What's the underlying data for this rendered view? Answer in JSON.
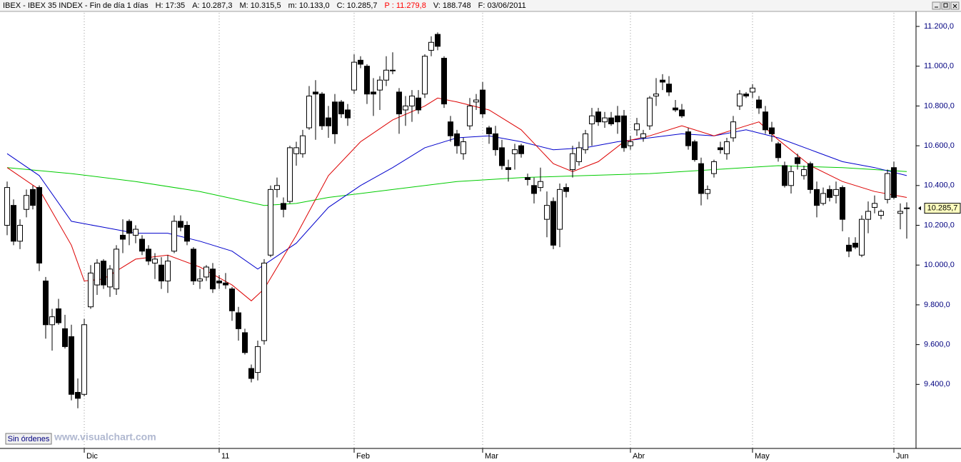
{
  "header": {
    "items": [
      {
        "text": "IBEX - IBEX 35 INDEX - Fin de día 1 días",
        "color": "#000000"
      },
      {
        "text": "H: 17:35",
        "color": "#000000"
      },
      {
        "text": "A: 10.287,3",
        "color": "#000000"
      },
      {
        "text": "M: 10.315,5",
        "color": "#000000"
      },
      {
        "text": "m: 10.133,0",
        "color": "#000000"
      },
      {
        "text": "C: 10.285,7",
        "color": "#000000"
      },
      {
        "text": "P : 11.279,8",
        "color": "#ff0000"
      },
      {
        "text": "V: 188.748",
        "color": "#000000"
      },
      {
        "text": "F: 03/06/2011",
        "color": "#000000"
      }
    ]
  },
  "footer": {
    "status": "Sin órdenes",
    "watermark": "www.visualchart.com"
  },
  "chart_data": {
    "type": "candlestick",
    "categories": [
      null,
      null,
      null,
      null,
      null,
      null,
      null,
      null,
      null,
      null,
      null,
      null,
      "Dic",
      null,
      null,
      null,
      null,
      null,
      null,
      null,
      null,
      null,
      null,
      null,
      null,
      null,
      null,
      null,
      null,
      null,
      null,
      null,
      null,
      "11",
      null,
      null,
      null,
      null,
      null,
      null,
      null,
      null,
      null,
      null,
      null,
      null,
      null,
      null,
      null,
      null,
      null,
      null,
      null,
      null,
      "Feb",
      null,
      null,
      null,
      null,
      null,
      null,
      null,
      null,
      null,
      null,
      null,
      null,
      null,
      null,
      null,
      null,
      null,
      null,
      null,
      "Mar",
      null,
      null,
      null,
      null,
      null,
      null,
      null,
      null,
      null,
      null,
      null,
      null,
      null,
      null,
      null,
      null,
      null,
      null,
      null,
      null,
      null,
      null,
      "Abr",
      null,
      null,
      null,
      null,
      null,
      null,
      null,
      null,
      null,
      null,
      null,
      null,
      null,
      null,
      null,
      null,
      null,
      null,
      "May",
      null,
      null,
      null,
      null,
      null,
      null,
      null,
      null,
      null,
      null,
      null,
      null,
      null,
      null,
      null,
      null,
      null,
      null,
      null,
      null,
      null,
      "Jun",
      null,
      null
    ],
    "open": [
      10200,
      10300,
      10120,
      10280,
      10380,
      10390,
      9920,
      9700,
      9780,
      9680,
      9640,
      9360,
      9350,
      9790,
      9900,
      10020,
      9890,
      9880,
      10150,
      10220,
      10150,
      10130,
      10080,
      10010,
      10000,
      9920,
      10070,
      10220,
      10200,
      10080,
      9920,
      9940,
      9980,
      9920,
      9910,
      9880,
      9760,
      9660,
      9480,
      9460,
      9620,
      10050,
      10380,
      10310,
      10320,
      10560,
      10560,
      10690,
      10870,
      10860,
      10740,
      10820,
      10820,
      10780,
      10880,
      11030,
      11000,
      10870,
      10880,
      10930,
      10980,
      10870,
      10780,
      10800,
      10840,
      10860,
      11080,
      11160,
      11040,
      10720,
      10660,
      10560,
      10700,
      10820,
      10880,
      10690,
      10660,
      10590,
      10490,
      10560,
      10600,
      10440,
      10400,
      10390,
      10230,
      10320,
      10180,
      10390,
      10480,
      10520,
      10580,
      10710,
      10770,
      10720,
      10740,
      10750,
      10750,
      10600,
      10680,
      10640,
      10700,
      10850,
      10930,
      10910,
      10790,
      10780,
      10670,
      10620,
      10510,
      10360,
      10460,
      10590,
      10560,
      10640,
      10800,
      10860,
      10870,
      10830,
      10770,
      10690,
      10610,
      10500,
      10400,
      10540,
      10450,
      10510,
      10380,
      10310,
      10380,
      10350,
      10390,
      10100,
      10110,
      10050,
      10230,
      10290,
      10250,
      10330,
      10490,
      10260,
      10287.3
    ],
    "high": [
      10420,
      10330,
      10230,
      10380,
      10400,
      10400,
      9940,
      9780,
      9830,
      9750,
      9700,
      9430,
      9730,
      10000,
      10030,
      10030,
      10000,
      10100,
      10230,
      10230,
      10200,
      10150,
      10100,
      10060,
      10040,
      10050,
      10250,
      10250,
      10220,
      10090,
      9980,
      10000,
      10010,
      9950,
      9960,
      9890,
      9790,
      9680,
      9500,
      9620,
      10030,
      10400,
      10440,
      10340,
      10600,
      10620,
      10680,
      10900,
      10930,
      10870,
      10800,
      10860,
      10830,
      10810,
      11060,
      11050,
      11010,
      10940,
      10950,
      11050,
      11070,
      10890,
      10850,
      10880,
      10880,
      11060,
      11150,
      11170,
      11050,
      10750,
      10680,
      10640,
      10840,
      10860,
      10920,
      10700,
      10700,
      10630,
      10530,
      10610,
      10610,
      10460,
      10440,
      10490,
      10370,
      10340,
      10410,
      10410,
      10600,
      10620,
      10680,
      10790,
      10790,
      10770,
      10770,
      10800,
      10780,
      10650,
      10740,
      10680,
      10850,
      10940,
      10960,
      10950,
      10830,
      10810,
      10690,
      10630,
      10540,
      10400,
      10530,
      10620,
      10640,
      10750,
      10880,
      10870,
      10910,
      10850,
      10800,
      10720,
      10620,
      10520,
      10500,
      10560,
      10500,
      10520,
      10420,
      10390,
      10400,
      10420,
      10400,
      10140,
      10140,
      10250,
      10320,
      10350,
      10280,
      10480,
      10520,
      10310,
      10315.5
    ],
    "low": [
      10150,
      10100,
      10080,
      10240,
      10280,
      9970,
      9630,
      9570,
      9700,
      9580,
      9320,
      9280,
      9340,
      9780,
      9850,
      9880,
      9840,
      9850,
      10060,
      10100,
      10110,
      10050,
      10000,
      9930,
      9880,
      9860,
      10060,
      10170,
      10100,
      9900,
      9880,
      9920,
      9860,
      9880,
      9880,
      9720,
      9620,
      9550,
      9410,
      9420,
      9600,
      10040,
      10340,
      10240,
      10310,
      10500,
      10540,
      10680,
      10630,
      10680,
      10640,
      10610,
      10740,
      10700,
      10860,
      10990,
      10810,
      10750,
      10780,
      10900,
      10960,
      10660,
      10700,
      10720,
      10760,
      10840,
      11050,
      11080,
      10790,
      10620,
      10560,
      10530,
      10680,
      10780,
      10740,
      10610,
      10550,
      10480,
      10420,
      10480,
      10540,
      10400,
      10310,
      10370,
      10140,
      10080,
      10090,
      10340,
      10440,
      10500,
      10560,
      10600,
      10700,
      10690,
      10700,
      10660,
      10570,
      10580,
      10650,
      10620,
      10680,
      10800,
      10880,
      10850,
      10770,
      10740,
      10580,
      10520,
      10300,
      10330,
      10440,
      10560,
      10530,
      10620,
      10780,
      10840,
      10840,
      10760,
      10660,
      10620,
      10520,
      10390,
      10360,
      10480,
      10430,
      10360,
      10240,
      10300,
      10320,
      10310,
      10170,
      10040,
      10080,
      10040,
      10160,
      10260,
      10230,
      10310,
      10330,
      10180,
      10133
    ],
    "close": [
      10390,
      10120,
      10200,
      10350,
      10300,
      10010,
      9700,
      9740,
      9710,
      9590,
      9350,
      9330,
      9700,
      9960,
      10010,
      9900,
      9980,
      10080,
      10130,
      10160,
      10180,
      10070,
      10020,
      10030,
      9920,
      10020,
      10220,
      10190,
      10120,
      9920,
      9930,
      9990,
      9880,
      9910,
      9900,
      9770,
      9680,
      9560,
      9430,
      9590,
      10010,
      10380,
      10400,
      10280,
      10590,
      10590,
      10650,
      10850,
      10860,
      10700,
      10700,
      10660,
      10760,
      10740,
      11020,
      11010,
      10860,
      10860,
      10930,
      10980,
      10980,
      10760,
      10800,
      10850,
      10780,
      11050,
      11120,
      11100,
      10810,
      10650,
      10600,
      10620,
      10800,
      10830,
      10760,
      10660,
      10580,
      10500,
      10480,
      10580,
      10560,
      10430,
      10360,
      10420,
      10300,
      10100,
      10380,
      10370,
      10560,
      10590,
      10660,
      10750,
      10720,
      10740,
      10710,
      10720,
      10590,
      10620,
      10710,
      10660,
      10840,
      10860,
      10920,
      10870,
      10780,
      10750,
      10600,
      10530,
      10360,
      10380,
      10520,
      10580,
      10620,
      10720,
      10860,
      10850,
      10890,
      10790,
      10680,
      10660,
      10540,
      10400,
      10470,
      10510,
      10480,
      10380,
      10300,
      10360,
      10340,
      10380,
      10230,
      10070,
      10090,
      10230,
      10270,
      10310,
      10270,
      10460,
      10340,
      10270,
      10285.7
    ],
    "up_color": "#ffffff",
    "down_color": "#000000",
    "overlays": [
      {
        "color": "#00cc00",
        "x": [
          0,
          10,
          20,
          30,
          40,
          45,
          50,
          60,
          70,
          80,
          90,
          100,
          110,
          120,
          130,
          140
        ],
        "values": [
          10490,
          10460,
          10420,
          10370,
          10300,
          10310,
          10340,
          10380,
          10420,
          10440,
          10450,
          10460,
          10480,
          10500,
          10490,
          10470
        ]
      },
      {
        "color": "#0000cc",
        "x": [
          0,
          5,
          10,
          15,
          20,
          25,
          30,
          35,
          39,
          45,
          50,
          55,
          60,
          65,
          70,
          75,
          80,
          85,
          90,
          95,
          100,
          105,
          110,
          115,
          120,
          125,
          130,
          135,
          140
        ],
        "values": [
          10560,
          10450,
          10220,
          10190,
          10160,
          10160,
          10120,
          10070,
          9980,
          10110,
          10290,
          10400,
          10490,
          10590,
          10640,
          10650,
          10620,
          10580,
          10590,
          10620,
          10640,
          10660,
          10650,
          10680,
          10640,
          10580,
          10520,
          10490,
          10450
        ]
      },
      {
        "color": "#dd0000",
        "x": [
          0,
          5,
          10,
          12,
          15,
          20,
          25,
          30,
          35,
          38,
          40,
          45,
          50,
          55,
          60,
          65,
          67,
          70,
          75,
          80,
          85,
          88,
          92,
          96,
          100,
          105,
          110,
          115,
          117,
          120,
          125,
          130,
          135,
          140
        ],
        "values": [
          10490,
          10380,
          10100,
          9920,
          9930,
          10030,
          10050,
          9990,
          9900,
          9820,
          9880,
          10150,
          10450,
          10620,
          10730,
          10800,
          10840,
          10820,
          10780,
          10680,
          10510,
          10470,
          10520,
          10620,
          10650,
          10700,
          10650,
          10700,
          10720,
          10630,
          10500,
          10420,
          10370,
          10340
        ]
      }
    ],
    "last_label": "10.285,7",
    "ylim": [
      9078,
      11261
    ],
    "yticks": [
      {
        "value": 9400,
        "label": "9.400,0"
      },
      {
        "value": 9600,
        "label": "9.600,0"
      },
      {
        "value": 9800,
        "label": "9.800,0"
      },
      {
        "value": 10000,
        "label": "10.000,0"
      },
      {
        "value": 10200,
        "label": "10.200,0"
      },
      {
        "value": 10400,
        "label": "10.400,0"
      },
      {
        "value": 10600,
        "label": "10.600,0"
      },
      {
        "value": 10800,
        "label": "10.800,0"
      },
      {
        "value": 11000,
        "label": "11.000,0"
      },
      {
        "value": 11200,
        "label": "11.200,0"
      }
    ],
    "grid": true
  }
}
